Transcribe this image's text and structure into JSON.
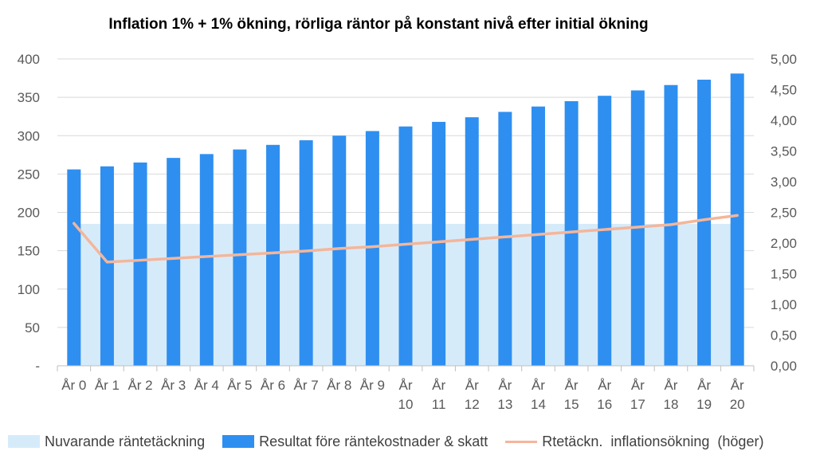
{
  "chart_data": {
    "type": "bar",
    "title": "Inflation 1% + 1% ökning, rörliga räntor på konstant nivå efter initial ökning",
    "categories": [
      [
        "År 0"
      ],
      [
        "År 1"
      ],
      [
        "År 2"
      ],
      [
        "År 3"
      ],
      [
        "År 4"
      ],
      [
        "År 5"
      ],
      [
        "År 6"
      ],
      [
        "År 7"
      ],
      [
        "År 8"
      ],
      [
        "År 9"
      ],
      [
        "År",
        "10"
      ],
      [
        "År",
        "11"
      ],
      [
        "År",
        "12"
      ],
      [
        "År",
        "13"
      ],
      [
        "År",
        "14"
      ],
      [
        "År",
        "15"
      ],
      [
        "År",
        "16"
      ],
      [
        "År",
        "17"
      ],
      [
        "År",
        "18"
      ],
      [
        "År",
        "19"
      ],
      [
        "År",
        "20"
      ]
    ],
    "y_left": {
      "ylim": [
        0,
        400
      ],
      "ticks": [
        "-",
        "50",
        "100",
        "150",
        "200",
        "250",
        "300",
        "350",
        "400"
      ]
    },
    "y_right": {
      "ylim": [
        0,
        5
      ],
      "ticks": [
        "0,00",
        "0,50",
        "1,00",
        "1,50",
        "2,00",
        "2,50",
        "3,00",
        "3,50",
        "4,00",
        "4,50",
        "5,00"
      ]
    },
    "grid": true,
    "legend_position": "bottom",
    "series": [
      {
        "name": "Nuvarande räntetäckning",
        "kind": "area",
        "axis": "left",
        "color": "#d6ebfa",
        "values": [
          185,
          185,
          185,
          185,
          185,
          185,
          185,
          185,
          185,
          185,
          185,
          185,
          185,
          185,
          185,
          185,
          185,
          185,
          185,
          185,
          185
        ]
      },
      {
        "name": "Resultat före räntekostnader & skatt",
        "kind": "bar",
        "axis": "left",
        "color": "#2e8ff0",
        "values": [
          256,
          260,
          265,
          271,
          276,
          282,
          288,
          294,
          300,
          306,
          312,
          318,
          324,
          331,
          338,
          345,
          352,
          359,
          366,
          373,
          381
        ]
      },
      {
        "name": "Rtetäckn.  inflationsökning  (höger)",
        "kind": "line",
        "axis": "right",
        "color": "#f4b69a",
        "values": [
          2.32,
          1.69,
          1.72,
          1.75,
          1.78,
          1.81,
          1.84,
          1.87,
          1.91,
          1.94,
          1.98,
          2.02,
          2.06,
          2.1,
          2.14,
          2.18,
          2.22,
          2.26,
          2.3,
          2.38,
          2.45
        ]
      }
    ]
  }
}
